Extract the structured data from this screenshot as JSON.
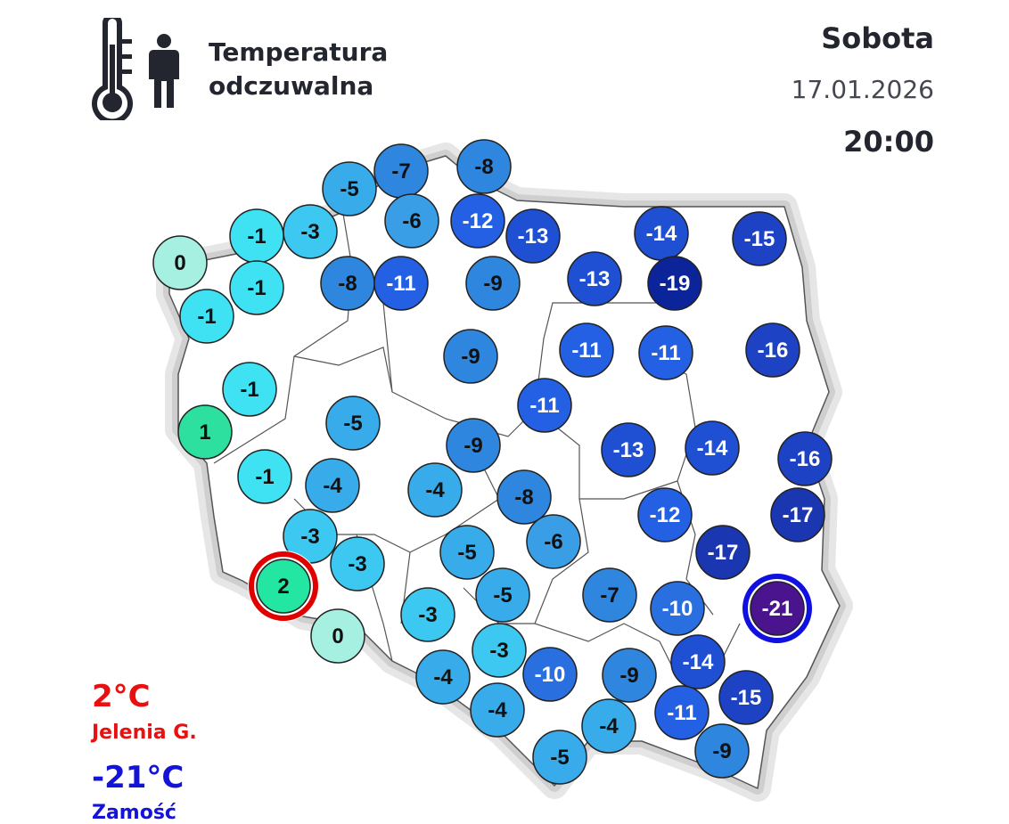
{
  "header": {
    "title_line1": "Temperatura",
    "title_line2": "odczuwalna",
    "day": "Sobota",
    "date": "17.01.2026",
    "time": "20:00",
    "icons": [
      "thermometer-icon",
      "person-icon"
    ]
  },
  "map": {
    "values": [
      0,
      -1,
      -3,
      -5,
      -7,
      -8,
      -6,
      -12,
      -13,
      -14,
      -15,
      -1,
      -1,
      -8,
      -11,
      -9,
      -13,
      -19,
      -9,
      -11,
      -11,
      -16,
      -1,
      1,
      -5,
      -11,
      -9,
      -13,
      -14,
      -16,
      -1,
      -4,
      -4,
      -8,
      -12,
      -17,
      -3,
      -3,
      -5,
      -6,
      -17,
      2,
      0,
      -3,
      -5,
      -7,
      -10,
      -21,
      -3,
      -4,
      -10,
      -9,
      -14,
      -15,
      -4,
      -4,
      -11,
      -9,
      -5
    ],
    "max_highlight_color": "#e00000",
    "min_highlight_color": "#1010e0"
  },
  "legend": {
    "max_value": "2°C",
    "max_place": "Jelenia G.",
    "min_value": "-21°C",
    "min_place": "Zamość",
    "max_color": "#e81010",
    "min_color": "#1414d8"
  }
}
